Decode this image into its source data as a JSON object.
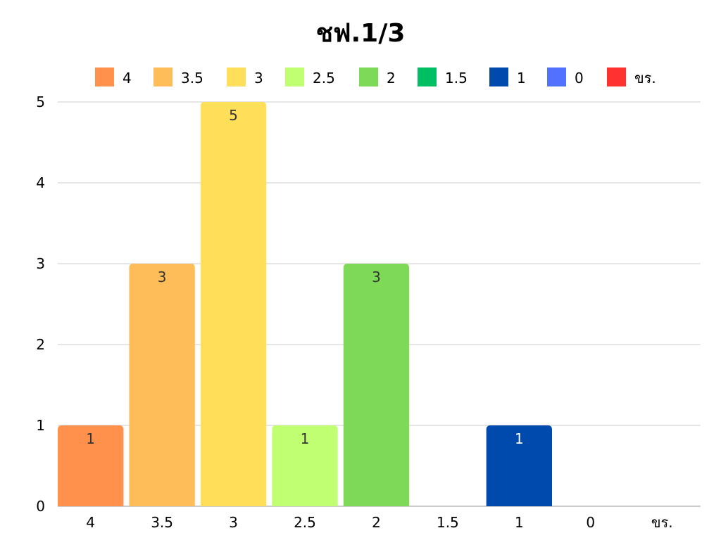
{
  "chart_data": {
    "type": "bar",
    "title": "ชฟ.1/3",
    "xlabel": "",
    "ylabel": "",
    "categories": [
      "4",
      "3.5",
      "3",
      "2.5",
      "2",
      "1.5",
      "1",
      "0",
      "ขร."
    ],
    "values": [
      1,
      3,
      5,
      1,
      3,
      0,
      1,
      0,
      0
    ],
    "colors": [
      "#FF914D",
      "#FFBD59",
      "#FFDE59",
      "#C1FF72",
      "#7ED957",
      "#00BF63",
      "#004AAD",
      "#5271FF",
      "#FF3131"
    ],
    "label_colors": [
      "#333333",
      "#333333",
      "#333333",
      "#333333",
      "#333333",
      "#333333",
      "#ffffff",
      "#333333",
      "#333333"
    ],
    "ylim": [
      0,
      5
    ],
    "yticks": [
      0,
      1,
      2,
      3,
      4,
      5
    ],
    "grid": true,
    "legend_position": "top",
    "show_data_labels": true
  }
}
